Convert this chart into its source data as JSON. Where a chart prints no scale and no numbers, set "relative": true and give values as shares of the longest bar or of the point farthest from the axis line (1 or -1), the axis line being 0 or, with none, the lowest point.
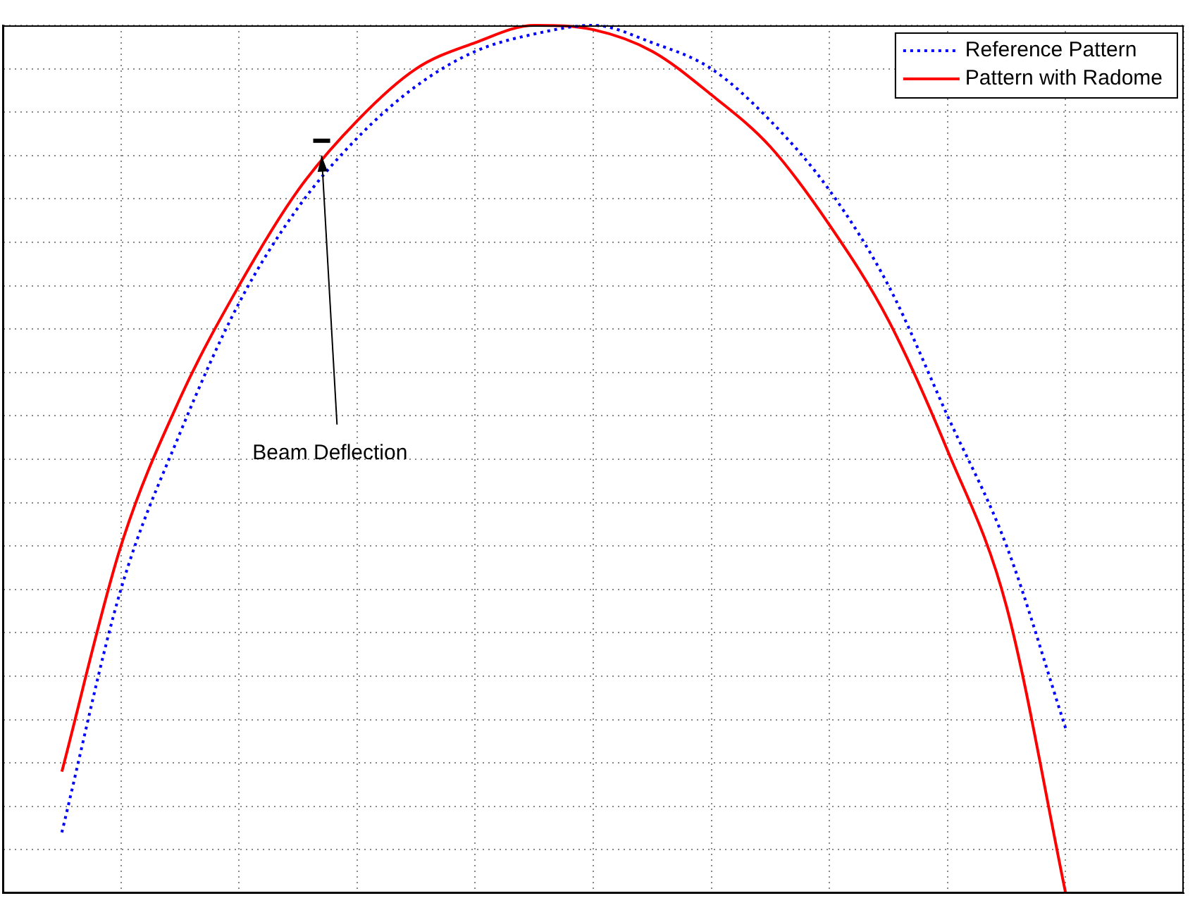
{
  "chart_data": {
    "type": "line",
    "relative": true,
    "grid": true,
    "legend": "top right",
    "annotations": [
      "Beam Deflection"
    ],
    "categories": [
      null,
      null,
      null,
      null,
      null,
      null,
      null,
      null,
      null,
      null,
      null,
      null,
      null,
      null,
      null,
      null,
      null,
      null,
      null,
      null,
      null
    ],
    "series": [
      {
        "name": "Reference Pattern",
        "color": "#0000ff",
        "line_style": "dotted",
        "values": [
          null,
          0.07,
          0.35,
          0.53,
          0.68,
          0.79,
          0.87,
          0.93,
          0.97,
          0.99,
          1.0,
          0.98,
          0.95,
          0.89,
          0.81,
          0.7,
          0.55,
          0.4,
          0.19,
          null,
          null
        ]
      },
      {
        "name": "Pattern with Radome",
        "color": "#ff0000",
        "line_style": "solid",
        "values": [
          null,
          0.14,
          0.4,
          0.57,
          0.7,
          0.81,
          0.89,
          0.95,
          0.98,
          1.0,
          0.995,
          0.97,
          0.92,
          0.86,
          0.77,
          0.66,
          0.51,
          0.33,
          0,
          null,
          null
        ]
      }
    ]
  }
}
